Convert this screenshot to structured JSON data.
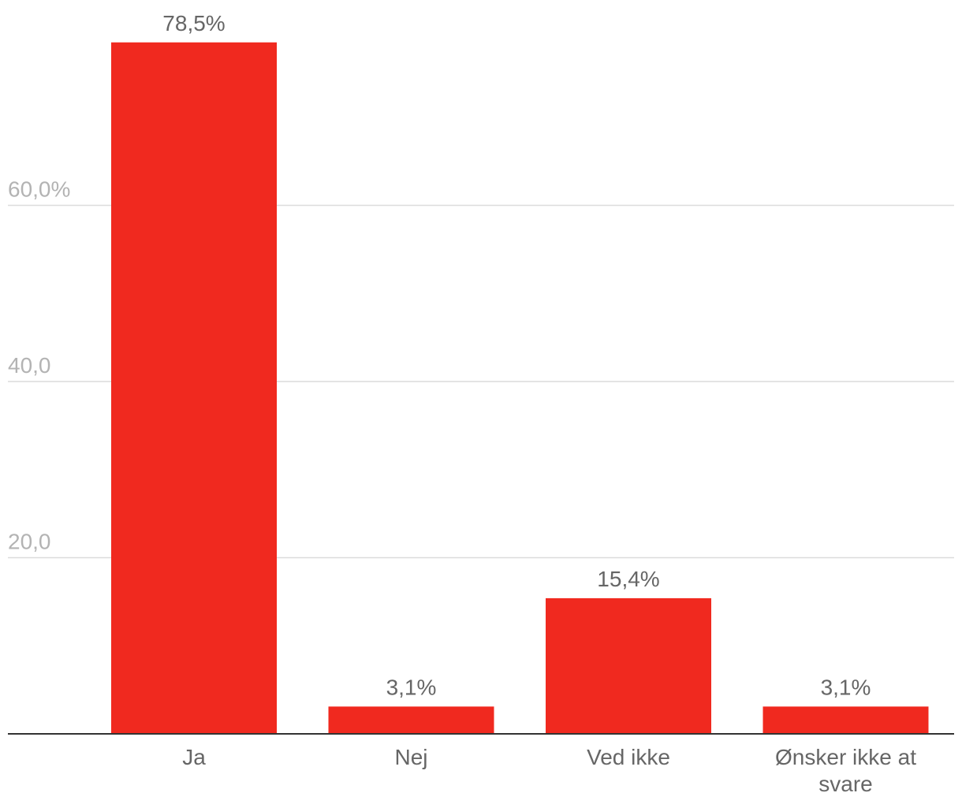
{
  "chart_data": {
    "type": "bar",
    "categories": [
      "Ja",
      "Nej",
      "Ved ikke",
      "Ønsker ikke at svare"
    ],
    "category_lines": [
      [
        "Ja"
      ],
      [
        "Nej"
      ],
      [
        "Ved ikke"
      ],
      [
        "Ønsker ikke at",
        "svare"
      ]
    ],
    "values": [
      78.5,
      3.1,
      15.4,
      3.1
    ],
    "data_labels": [
      "78,5%",
      "3,1%",
      "15,4%",
      "3,1%"
    ],
    "yticks": [
      {
        "value": 20,
        "label": "20,0"
      },
      {
        "value": 40,
        "label": "40,0"
      },
      {
        "value": 60,
        "label": "60,0%"
      }
    ],
    "ylim": [
      0,
      80
    ],
    "grid": true,
    "title": "",
    "xlabel": "",
    "ylabel": "",
    "bar_color": "#f0291f"
  }
}
